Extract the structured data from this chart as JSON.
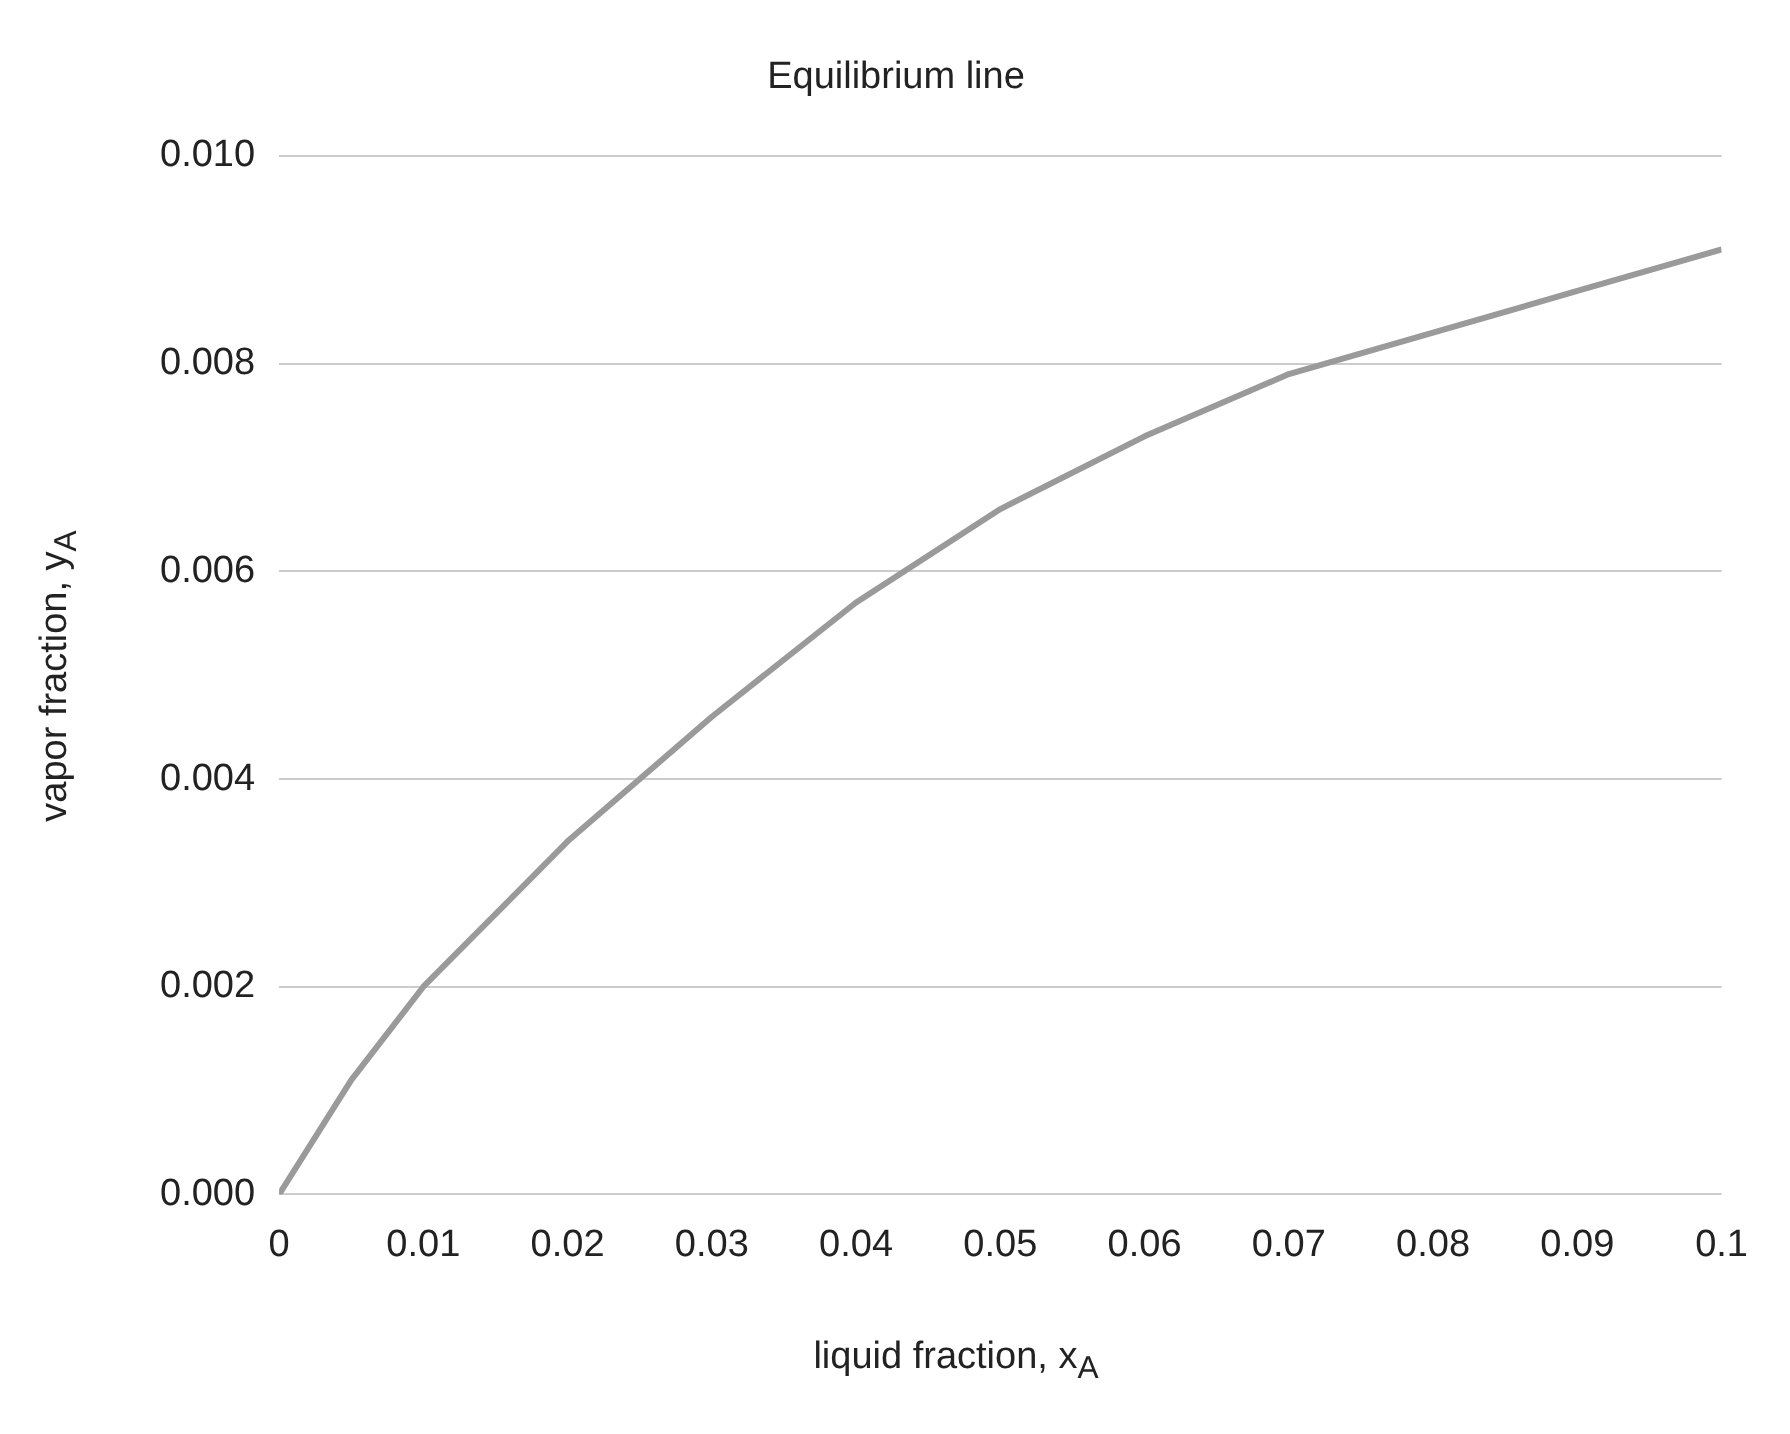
{
  "chart_data": {
    "type": "line",
    "title": "Equilibrium line",
    "xlabel": "liquid fraction, x$_{A}$",
    "ylabel": "vapor fraction, y$_{A}$",
    "series": [
      {
        "color": "#9a9a9a",
        "x": [
          0,
          0.005,
          0.01,
          0.02,
          0.03,
          0.04,
          0.05,
          0.06,
          0.07,
          0.08,
          0.09,
          0.1
        ],
        "values": [
          0,
          0.0011,
          0.002,
          0.0034,
          0.0046,
          0.0057,
          0.0066,
          0.0073,
          0.0079,
          0.0083,
          0.0087,
          0.0091
        ]
      }
    ],
    "xlim": [
      0,
      0.1
    ],
    "xticks": [
      0,
      0.01,
      0.02,
      0.03,
      0.04,
      0.05,
      0.06,
      0.07,
      0.08,
      0.09,
      0.1
    ],
    "ylim": [
      0,
      0.01
    ],
    "yticks": [
      {
        "value": 0,
        "label": "0.000"
      },
      {
        "value": 0.002,
        "label": "0.002"
      },
      {
        "value": 0.004,
        "label": "0.004"
      },
      {
        "value": 0.006,
        "label": "0.006"
      },
      {
        "value": 0.008,
        "label": "0.008"
      },
      {
        "value": 0.01,
        "label": "0.010"
      }
    ],
    "grid": "y",
    "marker": "none",
    "line_style": "solid",
    "legend": false
  }
}
